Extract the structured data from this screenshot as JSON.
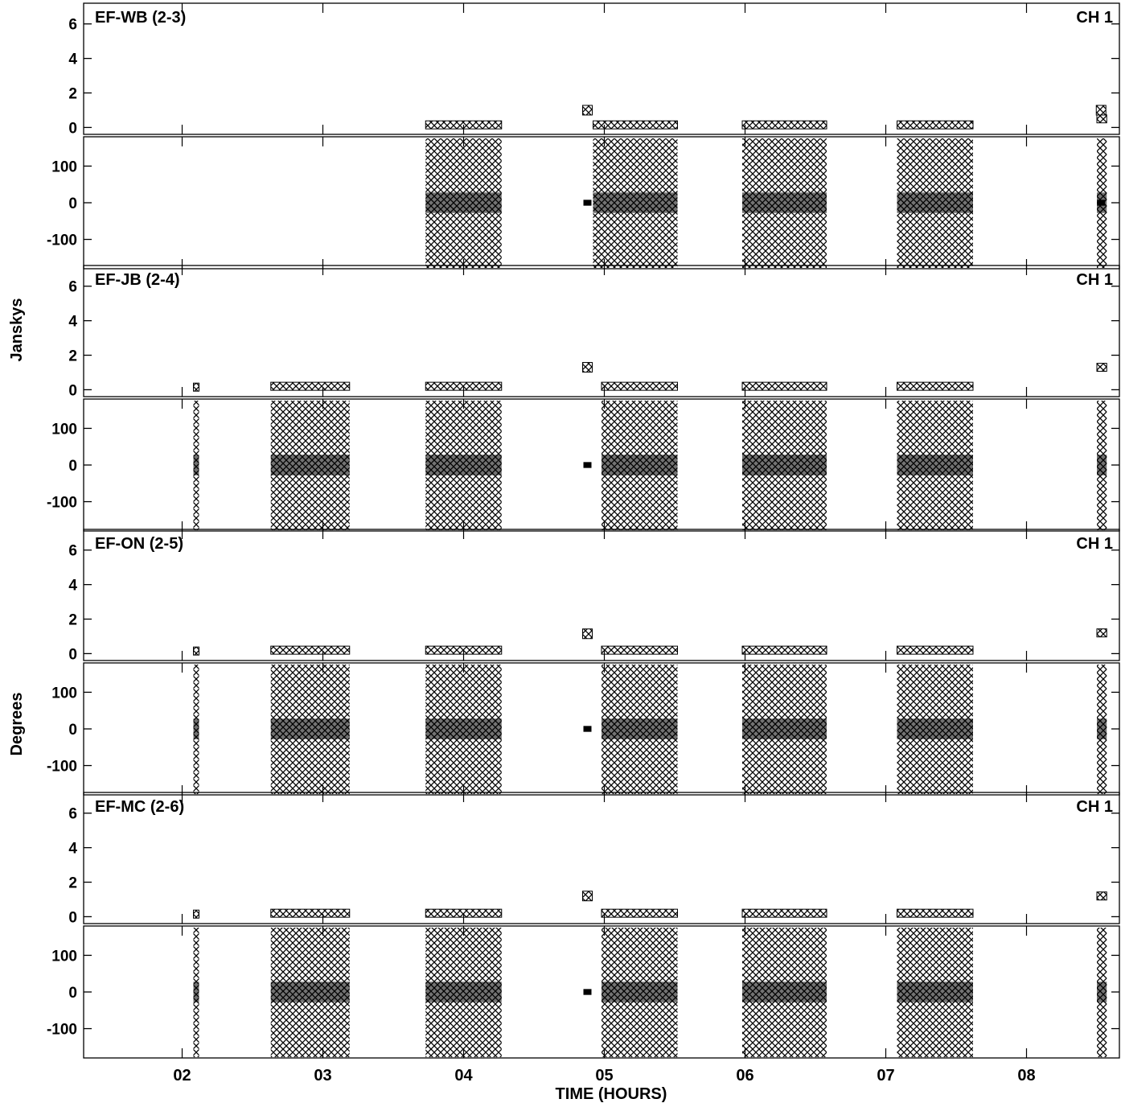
{
  "chart_data": {
    "type": "scatter",
    "xlabel": "TIME (HOURS)",
    "ylabels": [
      "Janskys",
      "Degrees"
    ],
    "x_ticks": [
      "02",
      "03",
      "04",
      "05",
      "06",
      "07",
      "08"
    ],
    "x_tick_values": [
      2,
      3,
      4,
      5,
      6,
      7,
      8
    ],
    "xlim": [
      1.3,
      8.66
    ],
    "amp_ylim": [
      -0.4,
      7.2
    ],
    "amp_ticks": [
      6,
      4,
      2,
      0
    ],
    "phase_ylim": [
      -180,
      180
    ],
    "phase_ticks": [
      100,
      0,
      -100
    ],
    "marker": "x",
    "panels": [
      {
        "baseline": "EF-WB (2-3)",
        "channel": "CH 1",
        "scans": [
          [
            3.73,
            4.27
          ],
          [
            4.92,
            5.52
          ],
          [
            5.98,
            6.58
          ],
          [
            7.08,
            7.62
          ],
          [
            8.5,
            8.57
          ]
        ],
        "amplitude": [
          0.15,
          0.15,
          0.15,
          0.15,
          0.5
        ],
        "spikes": [
          {
            "x": 4.88,
            "amplitude": 1.0
          },
          {
            "x": 8.53,
            "amplitude": 1.0
          }
        ]
      },
      {
        "baseline": "EF-JB (2-4)",
        "channel": "CH 1",
        "scans": [
          [
            2.08,
            2.12
          ],
          [
            2.63,
            3.19
          ],
          [
            3.73,
            4.27
          ],
          [
            4.98,
            5.52
          ],
          [
            5.98,
            6.58
          ],
          [
            7.08,
            7.62
          ],
          [
            8.5,
            8.57
          ]
        ],
        "amplitude": [
          0.15,
          0.2,
          0.2,
          0.2,
          0.2,
          0.2,
          1.3
        ],
        "spikes": [
          {
            "x": 4.88,
            "amplitude": 1.3
          }
        ]
      },
      {
        "baseline": "EF-ON (2-5)",
        "channel": "CH 1",
        "scans": [
          [
            2.08,
            2.12
          ],
          [
            2.63,
            3.19
          ],
          [
            3.73,
            4.27
          ],
          [
            4.98,
            5.52
          ],
          [
            5.98,
            6.58
          ],
          [
            7.08,
            7.62
          ],
          [
            8.5,
            8.57
          ]
        ],
        "amplitude": [
          0.15,
          0.2,
          0.2,
          0.2,
          0.2,
          0.2,
          1.2
        ],
        "spikes": [
          {
            "x": 4.88,
            "amplitude": 1.15
          }
        ]
      },
      {
        "baseline": "EF-MC (2-6)",
        "channel": "CH 1",
        "scans": [
          [
            2.08,
            2.12
          ],
          [
            2.63,
            3.19
          ],
          [
            3.73,
            4.27
          ],
          [
            4.98,
            5.52
          ],
          [
            5.98,
            6.58
          ],
          [
            7.08,
            7.62
          ],
          [
            8.5,
            8.57
          ]
        ],
        "amplitude": [
          0.15,
          0.2,
          0.2,
          0.2,
          0.2,
          0.2,
          1.2
        ],
        "spikes": [
          {
            "x": 4.88,
            "amplitude": 1.2
          }
        ]
      }
    ]
  }
}
